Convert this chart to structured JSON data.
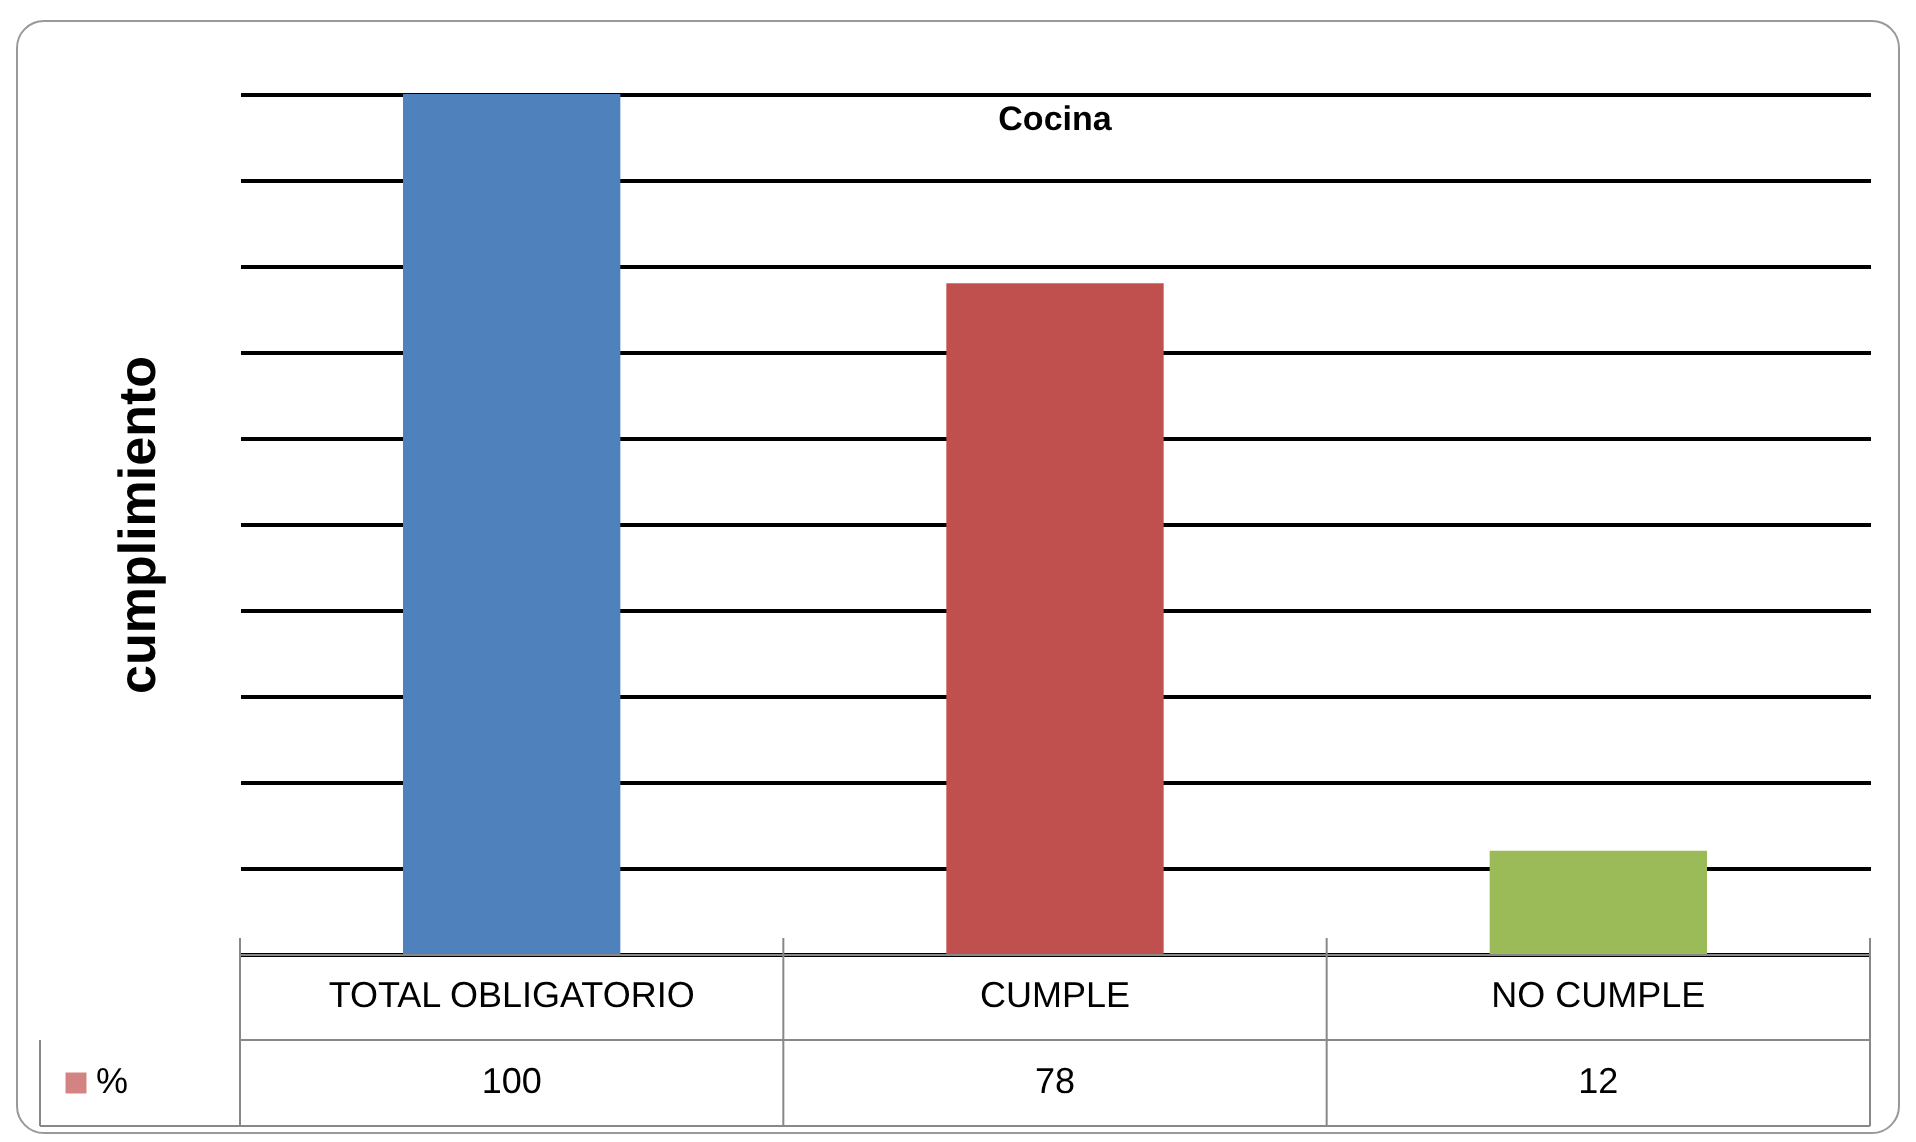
{
  "chart_data": {
    "type": "bar",
    "title": "Cocina",
    "ylabel": "cumplimiento",
    "categories": [
      "TOTAL OBLIGATORIO",
      "CUMPLE",
      "NO CUMPLE"
    ],
    "series": [
      {
        "name": "%",
        "color": "#c0504d",
        "colors": [
          "#4f81bd",
          "#c0504d",
          "#9bbb59"
        ],
        "values": [
          100,
          78,
          12
        ]
      }
    ],
    "ylim": [
      0,
      100
    ],
    "yticks": [
      {
        "value": 0,
        "label": null
      },
      {
        "value": 10,
        "label": null
      },
      {
        "value": 20,
        "label": null
      },
      {
        "value": 30,
        "label": null
      },
      {
        "value": 40,
        "label": null
      },
      {
        "value": 50,
        "label": null
      },
      {
        "value": 60,
        "label": null
      },
      {
        "value": 70,
        "label": null
      },
      {
        "value": 80,
        "label": null
      },
      {
        "value": 90,
        "label": null
      },
      {
        "value": 100,
        "label": null
      }
    ],
    "grid": "y",
    "data_labels": true,
    "legend": "bottom left",
    "tick_labels": "x"
  }
}
